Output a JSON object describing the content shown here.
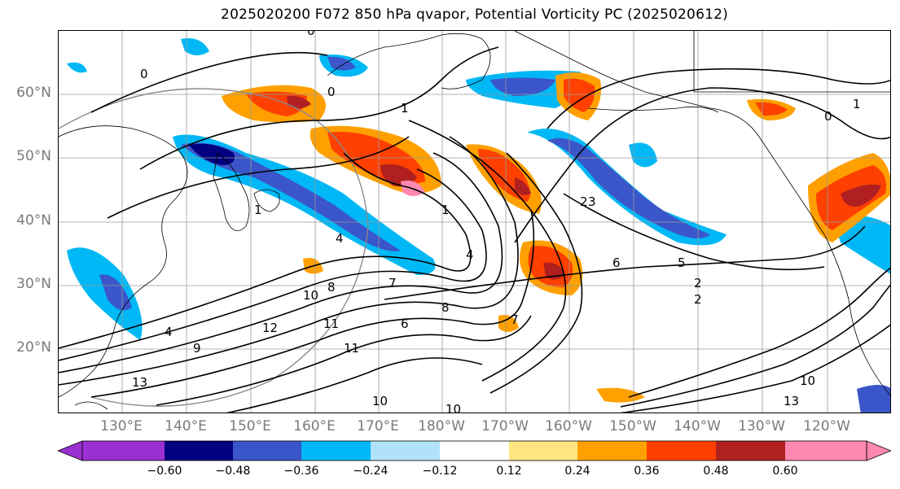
{
  "title": "2025020200 F072 850 hPa qvapor, Potential Vorticity PC (2025020612)",
  "map": {
    "lat_labels": [
      "60°N",
      "50°N",
      "40°N",
      "30°N",
      "20°N"
    ],
    "lon_labels": [
      "130°E",
      "140°E",
      "150°E",
      "160°E",
      "170°E",
      "180°W",
      "170°W",
      "160°W",
      "150°W",
      "140°W",
      "130°W",
      "120°W"
    ],
    "contour_labels": [
      {
        "text": "0"
      },
      {
        "text": "0"
      },
      {
        "text": "0"
      },
      {
        "text": "1"
      },
      {
        "text": "1"
      },
      {
        "text": "1"
      },
      {
        "text": "2"
      },
      {
        "text": "2"
      },
      {
        "text": "3"
      },
      {
        "text": "4"
      },
      {
        "text": "4"
      },
      {
        "text": "5"
      },
      {
        "text": "6"
      },
      {
        "text": "6"
      },
      {
        "text": "7"
      },
      {
        "text": "7"
      },
      {
        "text": "8"
      },
      {
        "text": "8"
      },
      {
        "text": "9"
      },
      {
        "text": "10"
      },
      {
        "text": "10"
      },
      {
        "text": "10"
      },
      {
        "text": "10"
      },
      {
        "text": "11"
      },
      {
        "text": "11"
      },
      {
        "text": "12"
      },
      {
        "text": "13"
      },
      {
        "text": "13"
      },
      {
        "text": "1"
      },
      {
        "text": "0"
      },
      {
        "text": "2"
      },
      {
        "text": "4"
      }
    ],
    "colors": {
      "land_line": "#000000",
      "grid": "#9a9a9a",
      "contour": "#000000",
      "circle": "#8a8a8a"
    }
  },
  "colorbar": {
    "colors": [
      "#9b30d0",
      "#000080",
      "#3a56c8",
      "#00b8f5",
      "#b0e2fa",
      "#ffffff",
      "#ffe680",
      "#ffa000",
      "#ff4000",
      "#b02020",
      "#ff88b0",
      "#ff88b0"
    ],
    "tick_labels": [
      "−0.60",
      "−0.48",
      "−0.36",
      "−0.24",
      "−0.12",
      "0.12",
      "0.24",
      "0.36",
      "0.48",
      "0.60"
    ]
  }
}
